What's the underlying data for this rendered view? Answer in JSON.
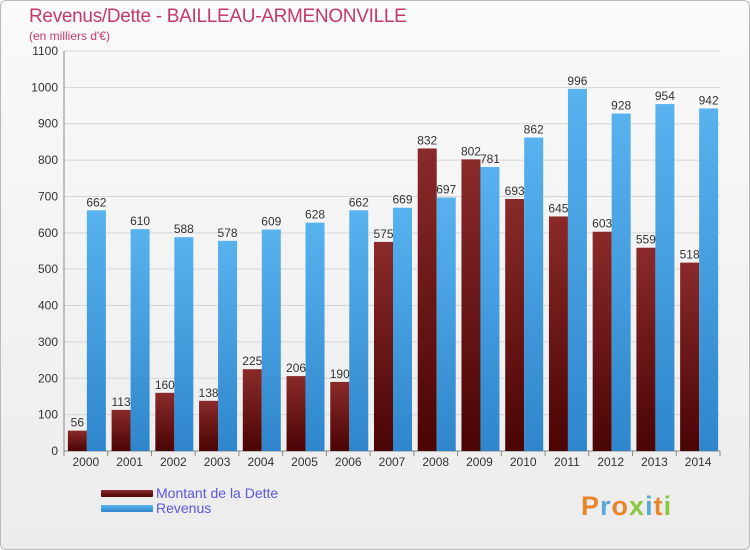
{
  "title": "Revenus/Dette - BAILLEAU-ARMENONVILLE",
  "subtitle": "(en milliers d'€)",
  "logo_text": "Proxiti",
  "colors": {
    "title": "#c23a6d",
    "dette": "#6b1414",
    "revenus": "#3d9ce0",
    "legend_text": "#5a57e0"
  },
  "chart_data": {
    "type": "bar",
    "title": "Revenus/Dette - BAILLEAU-ARMENONVILLE",
    "subtitle": "(en milliers d'€)",
    "categories": [
      "2000",
      "2001",
      "2002",
      "2003",
      "2004",
      "2005",
      "2006",
      "2007",
      "2008",
      "2009",
      "2010",
      "2011",
      "2012",
      "2013",
      "2014"
    ],
    "series": [
      {
        "name": "Montant de la Dette",
        "values": [
          56,
          113,
          160,
          138,
          225,
          206,
          190,
          575,
          832,
          802,
          693,
          645,
          603,
          559,
          518
        ]
      },
      {
        "name": "Revenus",
        "values": [
          662,
          610,
          588,
          578,
          609,
          628,
          662,
          669,
          697,
          781,
          862,
          996,
          928,
          954,
          942
        ]
      }
    ],
    "ylim": [
      0,
      1100
    ],
    "yticks": [
      0,
      100,
      200,
      300,
      400,
      500,
      600,
      700,
      800,
      900,
      1000,
      1100
    ],
    "grid": true,
    "legend_position": "bottom-left"
  }
}
